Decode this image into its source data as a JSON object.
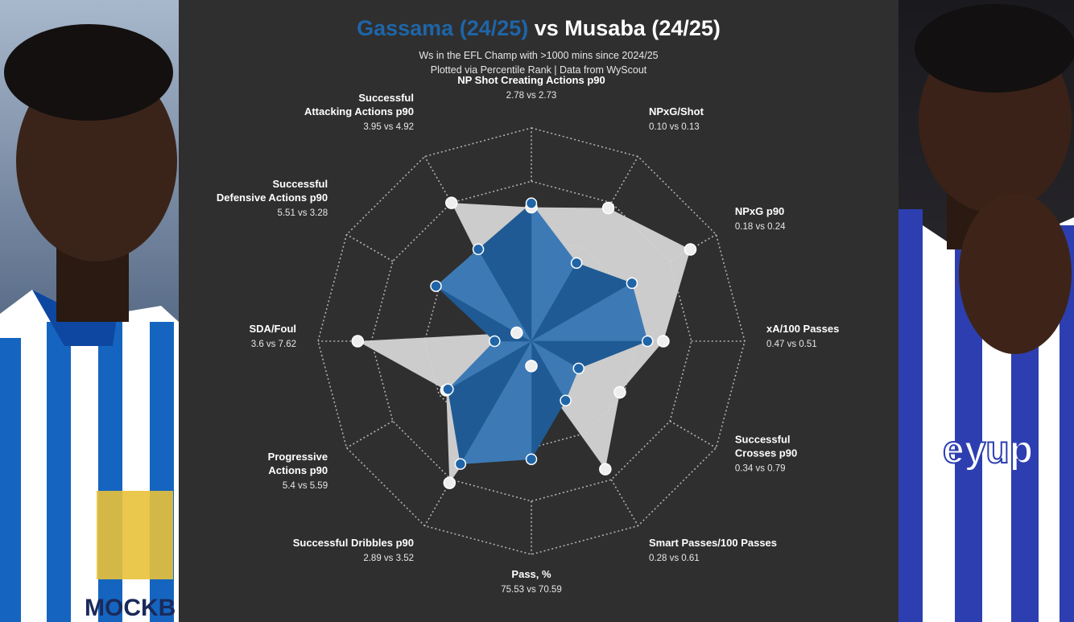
{
  "title": {
    "player1": "Gassama (24/25)",
    "separator": " vs ",
    "player2": "Musaba (24/25)"
  },
  "subtitle": {
    "line1": "Ws in the EFL Champ with >1000 mins since 2024/25",
    "line2": "Plotted via Percentile Rank | Data from WyScout"
  },
  "colors": {
    "background": "#2f2f2f",
    "player1": "#1f65a8",
    "player2": "#d5d5d5",
    "grid": "#c8c8c8"
  },
  "chart_data": {
    "type": "radar",
    "scale": "percentile rank",
    "range": [
      0,
      100
    ],
    "grid": true,
    "metrics": [
      {
        "label_lines": [
          "NP Shot Creating Actions p90"
        ],
        "values": "2.78 vs 2.73"
      },
      {
        "label_lines": [
          "NPxG/Shot"
        ],
        "values": "0.10 vs 0.13"
      },
      {
        "label_lines": [
          "NPxG p90"
        ],
        "values": "0.18 vs 0.24"
      },
      {
        "label_lines": [
          "xA/100 Passes"
        ],
        "values": "0.47 vs 0.51"
      },
      {
        "label_lines": [
          "Successful",
          "Crosses p90"
        ],
        "values": "0.34 vs 0.79"
      },
      {
        "label_lines": [
          "Smart Passes/100 Passes"
        ],
        "values": "0.28 vs 0.61"
      },
      {
        "label_lines": [
          "Pass, %"
        ],
        "values": "75.53 vs 70.59"
      },
      {
        "label_lines": [
          "Successful Dribbles p90"
        ],
        "values": "2.89 vs 3.52"
      },
      {
        "label_lines": [
          "Progressive",
          "Actions p90"
        ],
        "values": "5.4 vs 5.59"
      },
      {
        "label_lines": [
          "SDA/Foul"
        ],
        "values": "3.6 vs 7.62"
      },
      {
        "label_lines": [
          "Successful",
          "Defensive Actions p90"
        ],
        "values": "5.51 vs 3.28"
      },
      {
        "label_lines": [
          "Successful",
          "Attacking Actions p90"
        ],
        "values": "3.95 vs 4.92"
      }
    ],
    "series": [
      {
        "name": "Gassama (24/25)",
        "values": [
          62,
          38,
          51,
          51,
          20,
          27,
          52,
          64,
          41,
          11,
          48,
          46
        ]
      },
      {
        "name": "Musaba (24/25)",
        "values": [
          60,
          70,
          85,
          59,
          44,
          67,
          5,
          75,
          42,
          80,
          1,
          73
        ]
      }
    ]
  }
}
